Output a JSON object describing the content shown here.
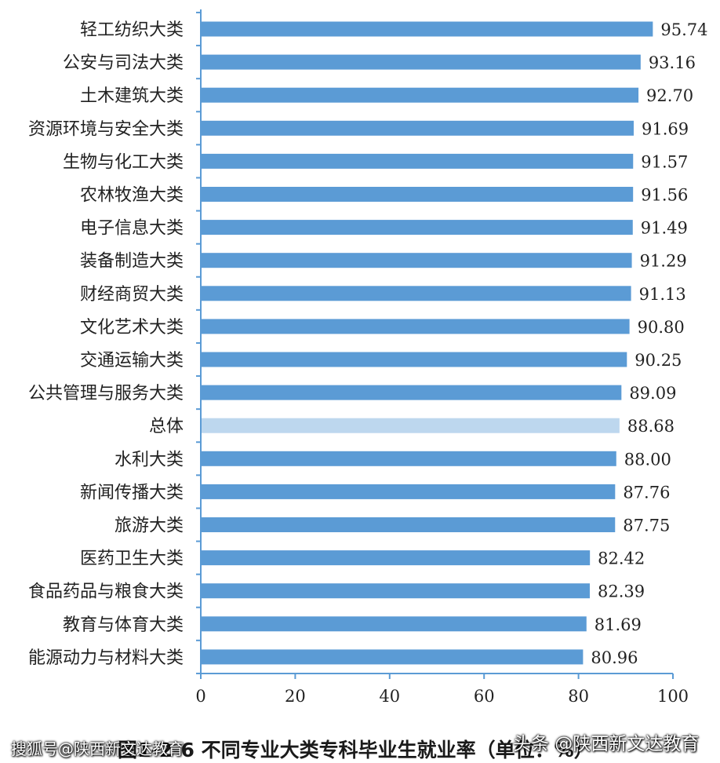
{
  "chart_data": {
    "type": "bar",
    "orientation": "horizontal",
    "categories": [
      "轻工纺织大类",
      "公安与司法大类",
      "土木建筑大类",
      "资源环境与安全大类",
      "生物与化工大类",
      "农林牧渔大类",
      "电子信息大类",
      "装备制造大类",
      "财经商贸大类",
      "文化艺术大类",
      "交通运输大类",
      "公共管理与服务大类",
      "总体",
      "水利大类",
      "新闻传播大类",
      "旅游大类",
      "医药卫生大类",
      "食品药品与粮食大类",
      "教育与体育大类",
      "能源动力与材料大类"
    ],
    "values": [
      95.74,
      93.16,
      92.7,
      91.69,
      91.57,
      91.56,
      91.49,
      91.29,
      91.13,
      90.8,
      90.25,
      89.09,
      88.68,
      88.0,
      87.76,
      87.75,
      82.42,
      82.39,
      81.69,
      80.96
    ],
    "value_labels": [
      "95.74",
      "93.16",
      "92.70",
      "91.69",
      "91.57",
      "91.56",
      "91.49",
      "91.29",
      "91.13",
      "90.80",
      "90.25",
      "89.09",
      "88.68",
      "88.00",
      "87.76",
      "87.75",
      "82.42",
      "82.39",
      "81.69",
      "80.96"
    ],
    "highlight_category": "总体",
    "xlim": [
      0,
      100
    ],
    "xticks": [
      0,
      20,
      40,
      60,
      80,
      100
    ],
    "grid": false,
    "title": "图1-2-6 不同专业大类专科毕业生就业率（单位：%）",
    "colors": {
      "bar": "#5b9bd5",
      "highlight": "#bdd7ee",
      "axis": "#5b9bd5"
    }
  },
  "watermarks": {
    "left": "搜狐号@陕西新文达教育",
    "right": "头条 @陕西新文达教育"
  }
}
